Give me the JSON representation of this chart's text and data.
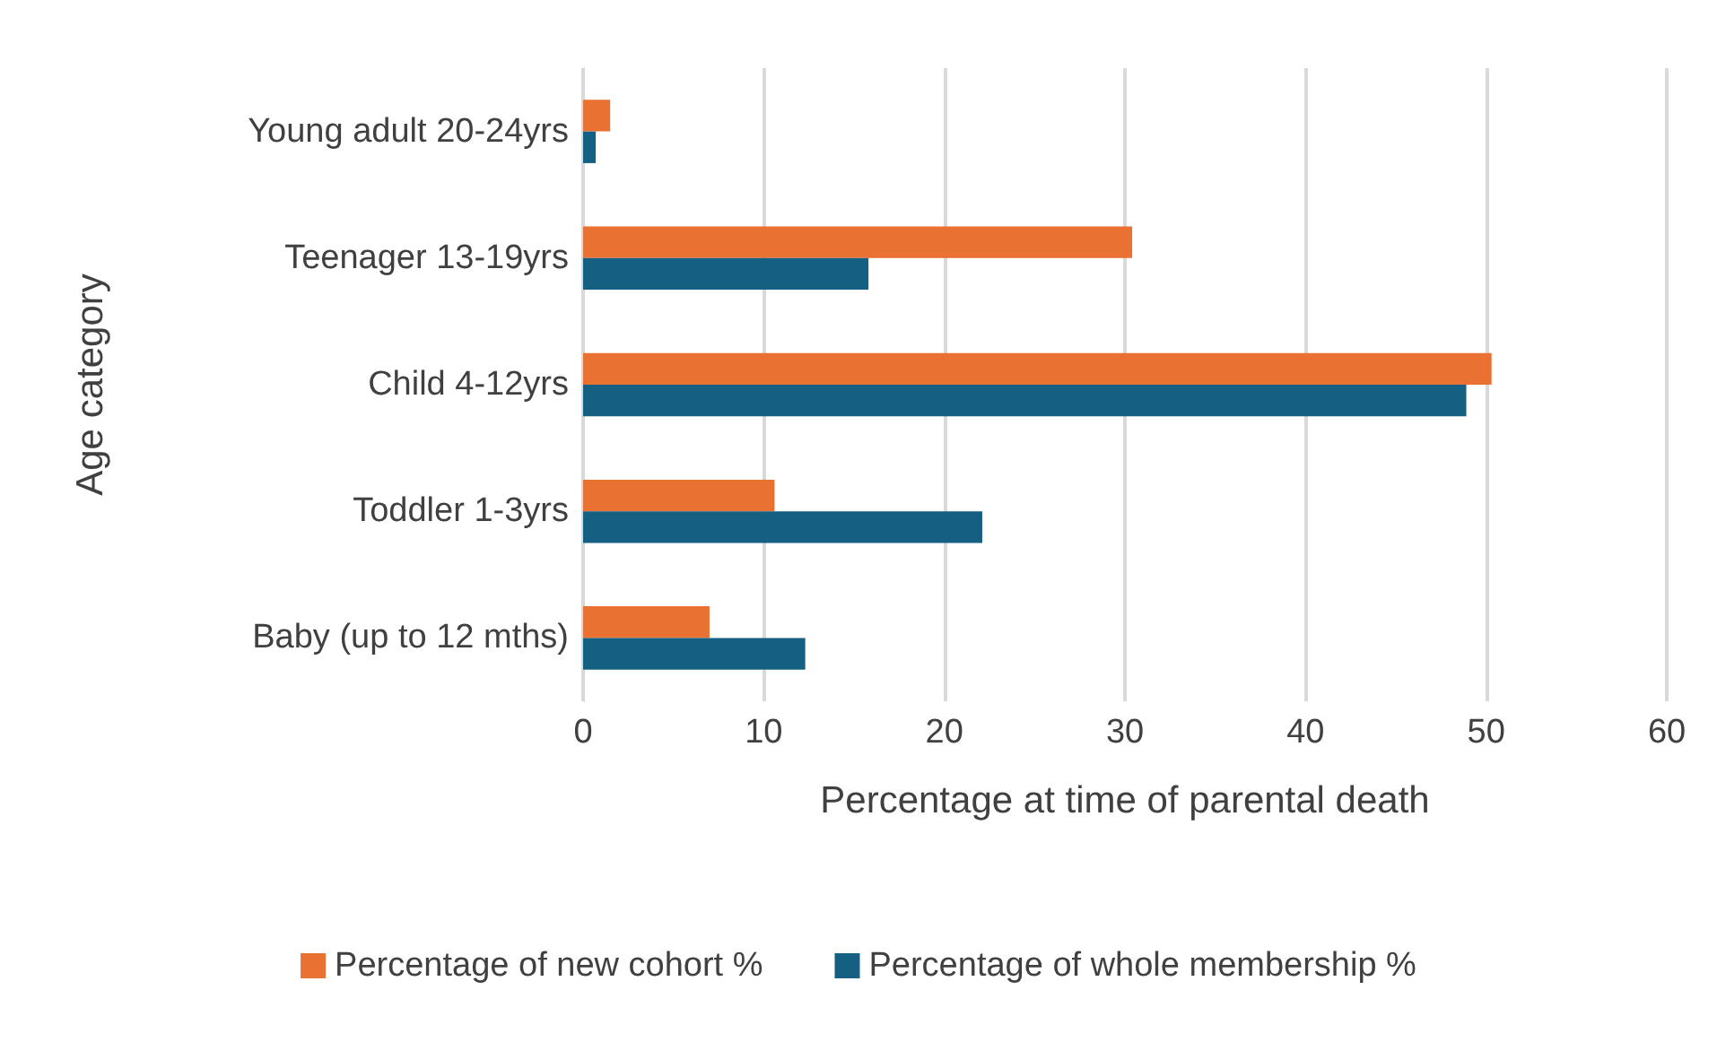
{
  "chart_data": {
    "type": "bar",
    "orientation": "horizontal",
    "xlabel": "Percentage at time of parental death",
    "ylabel": "Age category",
    "categories": [
      "Young adult 20-24yrs",
      "Teenager 13-19yrs",
      "Child 4-12yrs",
      "Toddler 1-3yrs",
      "Baby (up to 12 mths)"
    ],
    "series": [
      {
        "name": "Percentage of new cohort %",
        "color": "#e97132",
        "values": [
          1.5,
          30.4,
          50.3,
          10.6,
          7.0
        ]
      },
      {
        "name": "Percentage of whole membership %",
        "color": "#156082",
        "values": [
          0.7,
          15.8,
          48.9,
          22.1,
          12.3
        ]
      }
    ],
    "xlim": [
      0,
      60
    ],
    "xticks": [
      0,
      10,
      20,
      30,
      40,
      50,
      60
    ],
    "grid": "x",
    "legend": "bottom"
  }
}
